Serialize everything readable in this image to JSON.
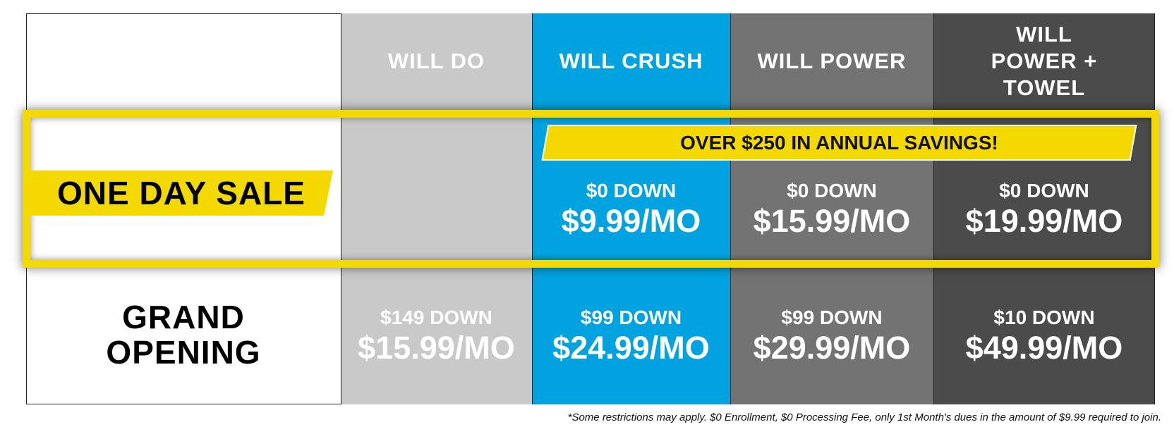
{
  "columns": [
    "WILL DO",
    "WILL CRUSH",
    "WILL POWER",
    "WILL POWER + TOWEL"
  ],
  "sale": {
    "label": "ONE DAY SALE",
    "banner": "OVER $250 IN ANNUAL SAVINGS!",
    "prices": [
      {
        "down": "$0 DOWN",
        "monthly": "$9.99/MO"
      },
      {
        "down": "$0 DOWN",
        "monthly": "$15.99/MO"
      },
      {
        "down": "$0 DOWN",
        "monthly": "$19.99/MO"
      }
    ]
  },
  "grand_opening": {
    "label": "GRAND OPENING",
    "prices": [
      {
        "down": "$149 DOWN",
        "monthly": "$15.99/MO"
      },
      {
        "down": "$99 DOWN",
        "monthly": "$24.99/MO"
      },
      {
        "down": "$99 DOWN",
        "monthly": "$29.99/MO"
      },
      {
        "down": "$10 DOWN",
        "monthly": "$49.99/MO"
      }
    ]
  },
  "footnote": "*Some restrictions may apply. $0 Enrollment, $0 Processing Fee, only 1st Month's dues in the amount of $9.99 required to join."
}
